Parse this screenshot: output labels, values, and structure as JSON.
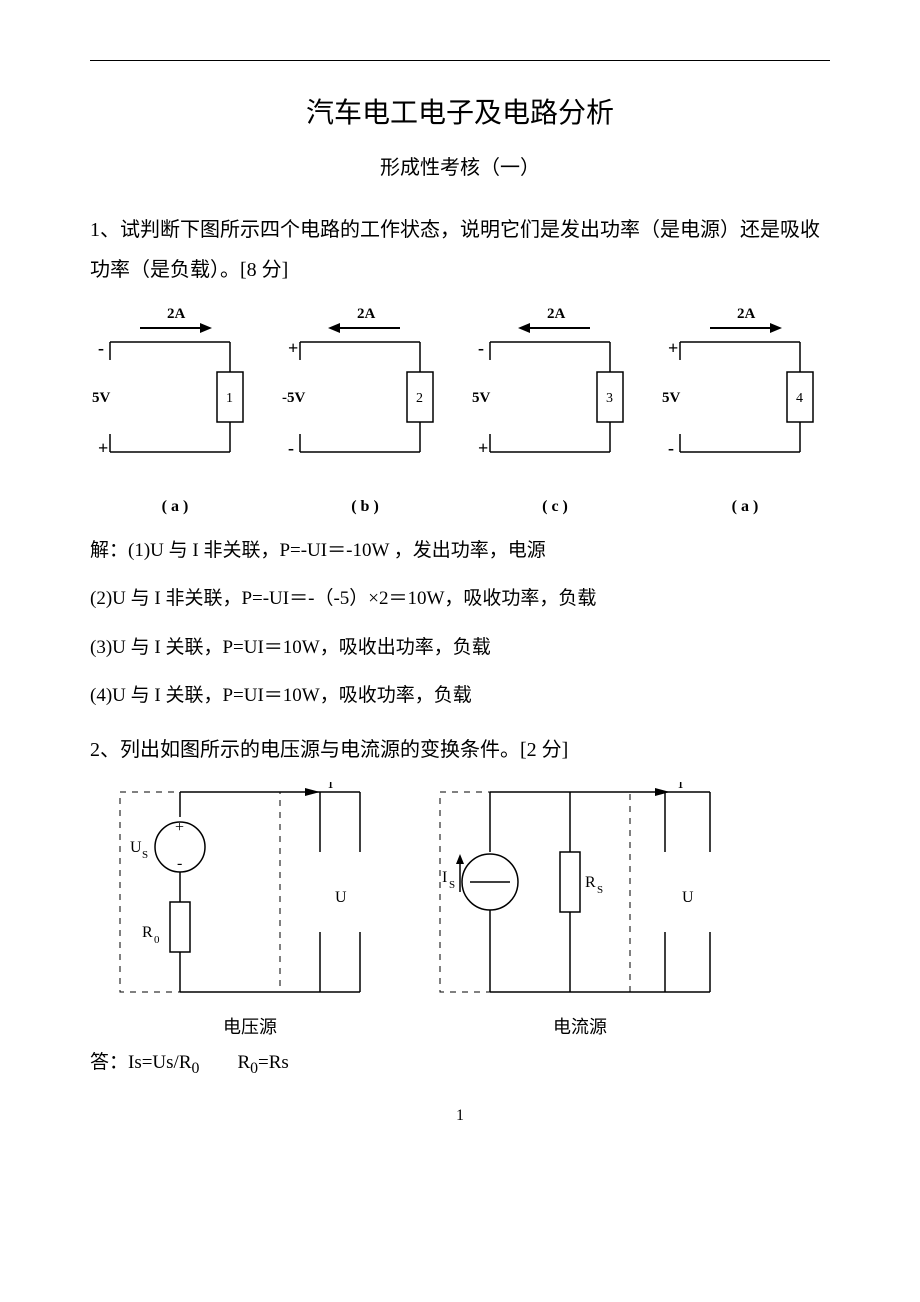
{
  "title": "汽车电工电子及电路分析",
  "subtitle": "形成性考核（一）",
  "q1_text": "1、试判断下图所示四个电路的工作状态，说明它们是发出功率（是电源）还是吸收功率（是负载）。[8 分]",
  "circuits": [
    {
      "current_label": "2A",
      "arrow_dir": "right",
      "top_sign": "-",
      "bottom_sign": "+",
      "voltage_label": "5V",
      "box_label": "1",
      "caption": "( a )"
    },
    {
      "current_label": "2A",
      "arrow_dir": "left",
      "top_sign": "+",
      "bottom_sign": "-",
      "voltage_label": "-5V",
      "box_label": "2",
      "caption": "( b )"
    },
    {
      "current_label": "2A",
      "arrow_dir": "left",
      "top_sign": "-",
      "bottom_sign": "+",
      "voltage_label": "5V",
      "box_label": "3",
      "caption": "( c )"
    },
    {
      "current_label": "2A",
      "arrow_dir": "right",
      "top_sign": "+",
      "bottom_sign": "-",
      "voltage_label": "5V",
      "box_label": "4",
      "caption": "( a )"
    }
  ],
  "solution": {
    "intro": "解：(1)U 与 I 非关联，P=-UI＝-10W ，发出功率，电源",
    "line2": "(2)U 与 I 非关联，P=-UI＝-（-5）×2＝10W，吸收功率，负载",
    "line3": "(3)U 与 I 关联，P=UI＝10W，吸收出功率，负载",
    "line4": "(4)U 与 I 关联，P=UI＝10W，吸收功率，负载"
  },
  "q2_text": "2、列出如图所示的电压源与电流源的变换条件。[2 分]",
  "q2": {
    "vsrc": {
      "I_lbl": "I",
      "Us_lbl": "U",
      "plus": "+",
      "minus": "-",
      "src_lbl": "S",
      "src_letter": "U",
      "R_lbl": "R",
      "R_sub": "0",
      "out_lbl": "U",
      "caption": "电压源"
    },
    "isrc": {
      "I_lbl": "I",
      "src_letter": "I",
      "src_sub": "S",
      "R_lbl": "R",
      "R_sub": "S",
      "out_lbl": "U",
      "caption": "电流源"
    }
  },
  "answer": {
    "prefix": "答：Is=Us/R",
    "sub1": "0",
    "mid": "　　R",
    "sub2": "0",
    "suffix": "=Rs"
  },
  "page_number": "1",
  "colors": {
    "stroke": "#000000",
    "bg": "#ffffff"
  }
}
